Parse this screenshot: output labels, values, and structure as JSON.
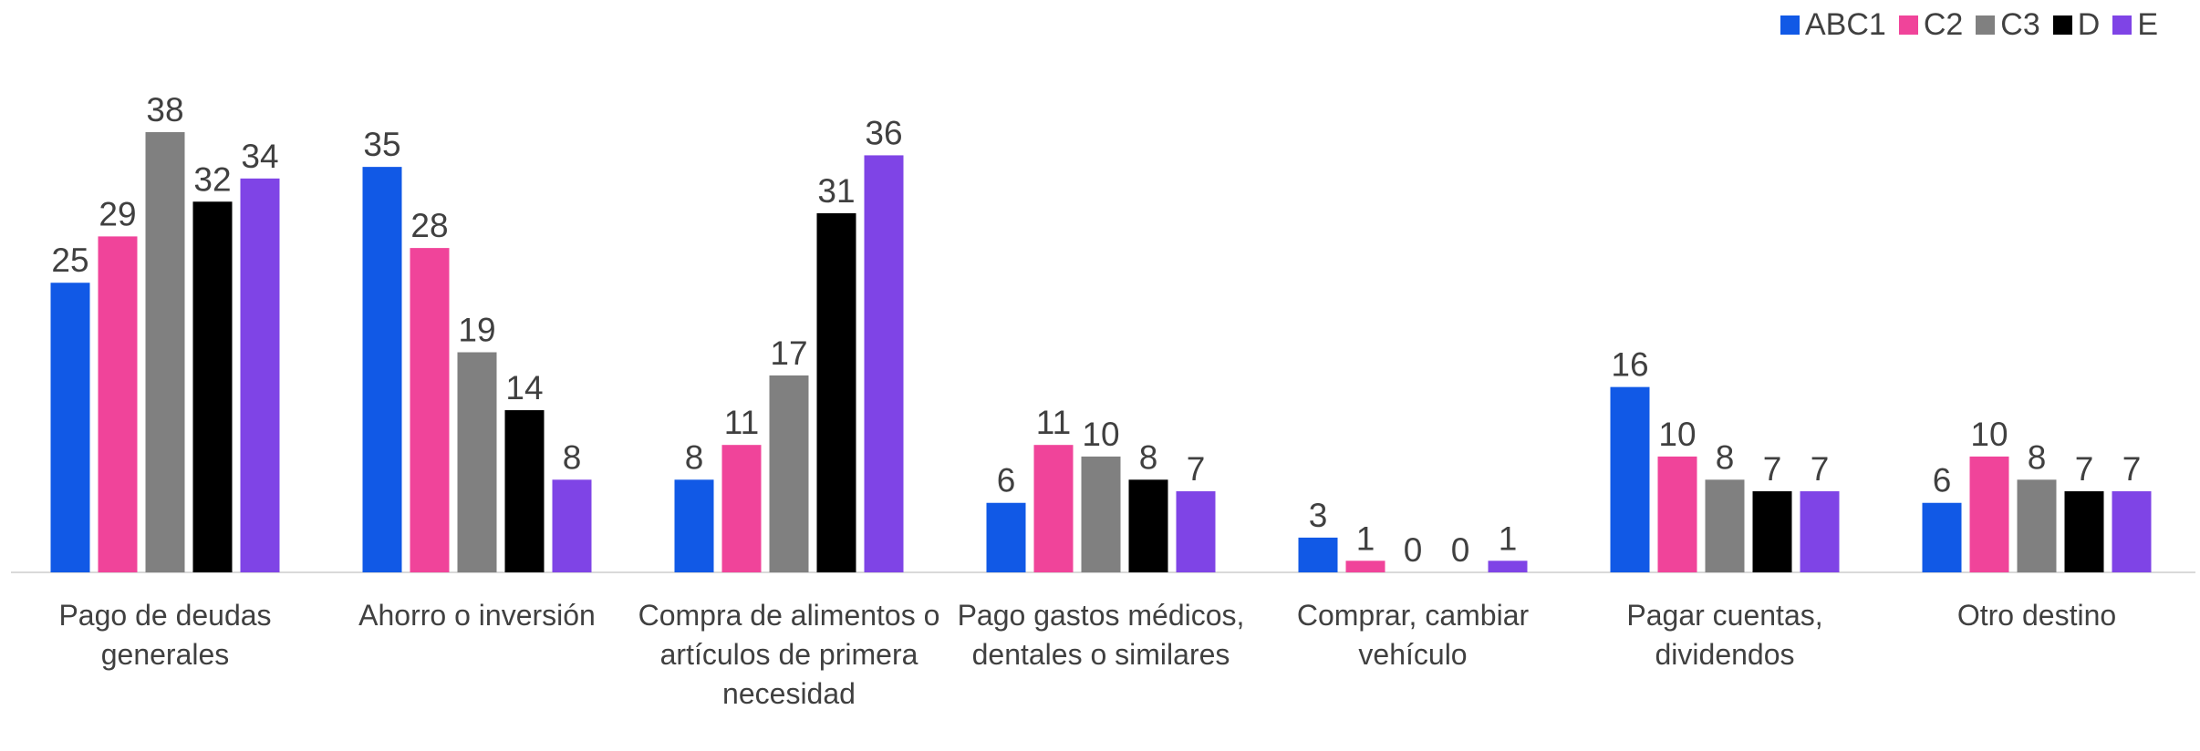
{
  "chart_data": {
    "type": "bar",
    "categories": [
      "Pago de deudas generales",
      "Ahorro o inversión",
      "Compra de alimentos o artículos de primera necesidad",
      "Pago gastos médicos, dentales o similares",
      "Comprar, cambiar vehículo",
      "Pagar cuentas, dividendos",
      "Otro destino"
    ],
    "series": [
      {
        "name": "ABC1",
        "color": "#1159e6",
        "values": [
          25,
          35,
          8,
          6,
          3,
          16,
          6
        ]
      },
      {
        "name": "C2",
        "color": "#f0449a",
        "values": [
          29,
          28,
          11,
          11,
          1,
          10,
          10
        ]
      },
      {
        "name": "C3",
        "color": "#808080",
        "values": [
          38,
          19,
          17,
          10,
          0,
          8,
          8
        ]
      },
      {
        "name": "D",
        "color": "#000000",
        "values": [
          32,
          14,
          31,
          8,
          0,
          7,
          7
        ]
      },
      {
        "name": "E",
        "color": "#7f44e6",
        "values": [
          34,
          8,
          36,
          7,
          1,
          7,
          7
        ]
      }
    ],
    "legend": "top-right"
  }
}
